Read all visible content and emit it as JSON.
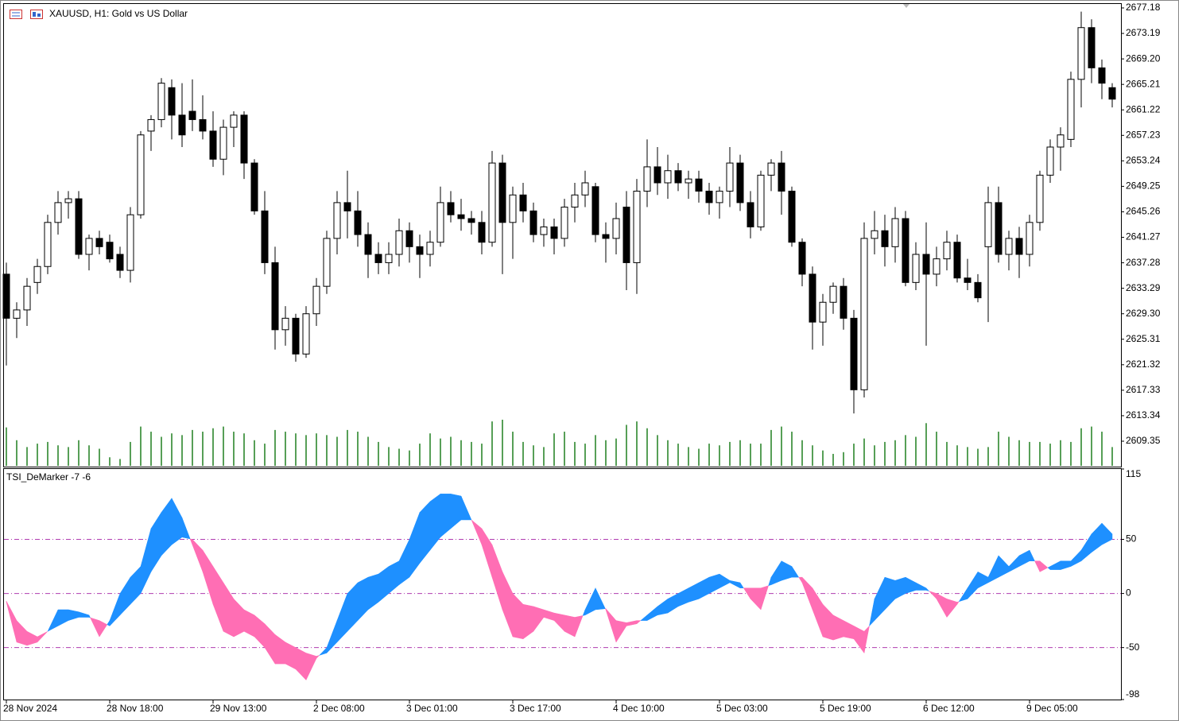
{
  "chart_data": [
    {
      "type": "candlestick",
      "title": "XAUUSD, H1:  Gold vs US Dollar",
      "categories": [
        "28 Nov 2024",
        null,
        null,
        null,
        null,
        null,
        null,
        null,
        null,
        null,
        "28 Nov 18:00",
        null,
        null,
        null,
        null,
        null,
        null,
        null,
        null,
        null,
        "29 Nov 13:00",
        null,
        null,
        null,
        null,
        null,
        null,
        null,
        null,
        null,
        "2 Dec 08:00",
        null,
        null,
        null,
        null,
        null,
        null,
        null,
        null,
        "3 Dec 01:00",
        null,
        null,
        null,
        null,
        null,
        null,
        null,
        null,
        null,
        "3 Dec 17:00",
        null,
        null,
        null,
        null,
        null,
        null,
        null,
        null,
        null,
        "4 Dec 10:00",
        null,
        null,
        null,
        null,
        null,
        null,
        null,
        null,
        null,
        "5 Dec 03:00",
        null,
        null,
        null,
        null,
        null,
        null,
        null,
        null,
        null,
        "5 Dec 19:00",
        null,
        null,
        null,
        null,
        null,
        null,
        null,
        null,
        null,
        "6 Dec 12:00",
        null,
        null,
        null,
        null,
        null,
        null,
        null,
        null,
        null,
        "9 Dec 05:00",
        null,
        null,
        null,
        null,
        null,
        null,
        null,
        null
      ],
      "open": [
        2635.5,
        2628.6,
        2629.9,
        2634.2,
        2636.7,
        2643.6,
        2646.7,
        2647.3,
        2638.6,
        2641.1,
        2640.5,
        2638.6,
        2636.1,
        2644.8,
        2657.9,
        2659.7,
        2664.7,
        2660.4,
        2661.0,
        2659.7,
        2657.9,
        2653.5,
        2658.5,
        2660.4,
        2652.9,
        2645.4,
        2637.3,
        2626.8,
        2628.6,
        2623.0,
        2629.3,
        2633.6,
        2641.1,
        2646.7,
        2645.4,
        2641.7,
        2638.6,
        2637.3,
        2638.6,
        2642.3,
        2639.8,
        2638.6,
        2640.5,
        2646.7,
        2644.8,
        2644.2,
        2643.6,
        2640.5,
        2652.9,
        2643.6,
        2647.9,
        2645.4,
        2641.7,
        2642.9,
        2641.1,
        2646.0,
        2647.9,
        2649.2,
        2641.7,
        2641.1,
        2646.0,
        2637.3,
        2648.5,
        2652.3,
        2649.8,
        2651.7,
        2649.8,
        2650.4,
        2648.5,
        2646.7,
        2648.5,
        2652.9,
        2646.7,
        2642.9,
        2651.0,
        2652.9,
        2648.5,
        2640.5,
        2635.5,
        2628.0,
        2631.1,
        2633.6,
        2628.6,
        2617.4,
        2641.1,
        2642.3,
        2639.8,
        2644.2,
        2634.2,
        2638.6,
        2635.5,
        2637.9,
        2640.5,
        2634.9,
        2634.2,
        2639.8,
        2646.7,
        2638.6,
        2641.1,
        2638.6,
        2643.6,
        2651.0,
        2655.4,
        2656.6,
        2666.0,
        2674.1,
        2667.8,
        2664.7
      ],
      "high": [
        2637.3,
        2631.1,
        2634.9,
        2637.9,
        2644.8,
        2648.5,
        2648.5,
        2648.5,
        2641.7,
        2642.3,
        2641.7,
        2639.8,
        2646.0,
        2657.9,
        2660.4,
        2666.2,
        2666.0,
        2665.4,
        2666.0,
        2663.5,
        2661.0,
        2659.7,
        2661.0,
        2661.0,
        2653.5,
        2648.5,
        2639.8,
        2630.5,
        2629.3,
        2630.5,
        2634.9,
        2642.3,
        2648.5,
        2651.7,
        2648.5,
        2643.6,
        2640.5,
        2640.5,
        2644.2,
        2643.6,
        2641.7,
        2642.3,
        2649.2,
        2648.5,
        2647.3,
        2645.4,
        2645.4,
        2654.8,
        2654.2,
        2649.2,
        2649.8,
        2646.7,
        2644.2,
        2644.2,
        2647.3,
        2649.8,
        2651.7,
        2649.8,
        2643.6,
        2646.7,
        2648.5,
        2650.4,
        2656.6,
        2655.4,
        2654.2,
        2652.9,
        2651.7,
        2651.7,
        2649.8,
        2649.2,
        2655.4,
        2654.2,
        2648.5,
        2651.7,
        2653.5,
        2654.8,
        2649.2,
        2641.1,
        2636.7,
        2632.4,
        2634.2,
        2634.9,
        2629.9,
        2643.6,
        2645.4,
        2644.8,
        2646.0,
        2645.4,
        2640.5,
        2643.6,
        2639.8,
        2642.3,
        2641.7,
        2637.9,
        2635.5,
        2649.2,
        2649.2,
        2642.3,
        2642.9,
        2644.8,
        2651.7,
        2656.6,
        2658.5,
        2667.2,
        2676.6,
        2675.4,
        2669.1,
        2665.4
      ],
      "low": [
        2621.2,
        2625.5,
        2627.4,
        2632.4,
        2635.5,
        2641.7,
        2644.2,
        2637.9,
        2636.1,
        2638.6,
        2637.3,
        2634.9,
        2634.2,
        2644.2,
        2654.8,
        2658.5,
        2656.6,
        2655.4,
        2657.9,
        2656.6,
        2652.3,
        2651.0,
        2655.4,
        2650.4,
        2644.8,
        2635.5,
        2623.7,
        2624.3,
        2621.8,
        2622.4,
        2627.4,
        2632.4,
        2638.6,
        2641.1,
        2639.8,
        2634.9,
        2635.5,
        2635.5,
        2636.7,
        2637.3,
        2634.9,
        2636.7,
        2639.8,
        2643.6,
        2642.3,
        2641.7,
        2638.6,
        2639.8,
        2635.5,
        2637.9,
        2643.6,
        2640.5,
        2639.8,
        2638.6,
        2639.8,
        2643.6,
        2646.0,
        2640.5,
        2637.3,
        2638.6,
        2633.0,
        2632.4,
        2646.0,
        2647.9,
        2647.3,
        2648.5,
        2647.3,
        2646.7,
        2644.8,
        2644.2,
        2646.0,
        2645.4,
        2641.1,
        2642.3,
        2648.5,
        2644.8,
        2639.8,
        2633.6,
        2623.7,
        2624.3,
        2629.3,
        2626.8,
        2613.7,
        2616.2,
        2638.6,
        2636.7,
        2637.3,
        2633.6,
        2633.0,
        2624.3,
        2633.6,
        2636.1,
        2634.2,
        2633.0,
        2631.1,
        2628.0,
        2637.3,
        2636.1,
        2634.9,
        2636.7,
        2642.3,
        2649.8,
        2651.7,
        2655.4,
        2661.6,
        2665.4,
        2662.9,
        2661.6
      ],
      "close": [
        2628.6,
        2629.9,
        2633.6,
        2636.7,
        2643.6,
        2646.7,
        2647.3,
        2638.6,
        2641.1,
        2639.8,
        2637.9,
        2636.1,
        2644.8,
        2657.3,
        2659.7,
        2665.4,
        2660.4,
        2657.3,
        2659.7,
        2657.9,
        2653.5,
        2658.5,
        2660.4,
        2652.9,
        2645.4,
        2637.3,
        2626.8,
        2628.6,
        2623.0,
        2629.3,
        2633.6,
        2641.1,
        2646.7,
        2645.4,
        2641.7,
        2638.6,
        2637.3,
        2638.6,
        2642.3,
        2639.8,
        2638.6,
        2640.5,
        2646.7,
        2644.8,
        2644.2,
        2643.6,
        2640.5,
        2652.9,
        2643.6,
        2647.9,
        2645.4,
        2641.7,
        2642.9,
        2641.1,
        2646.0,
        2647.9,
        2649.8,
        2641.7,
        2641.1,
        2644.2,
        2637.3,
        2648.5,
        2652.3,
        2649.8,
        2651.7,
        2649.8,
        2650.4,
        2648.5,
        2646.7,
        2648.5,
        2652.9,
        2646.7,
        2642.9,
        2651.0,
        2652.9,
        2648.5,
        2640.5,
        2635.5,
        2628.0,
        2631.1,
        2633.6,
        2628.6,
        2617.4,
        2641.1,
        2642.3,
        2639.8,
        2644.2,
        2634.2,
        2638.6,
        2635.5,
        2637.9,
        2640.5,
        2634.9,
        2634.2,
        2631.8,
        2646.7,
        2638.6,
        2641.1,
        2638.6,
        2643.6,
        2651.0,
        2655.4,
        2657.3,
        2666.0,
        2674.1,
        2667.8,
        2665.4,
        2662.9
      ],
      "volume": [
        45,
        30,
        22,
        26,
        28,
        24,
        22,
        30,
        24,
        20,
        10,
        8,
        28,
        46,
        40,
        34,
        38,
        36,
        42,
        40,
        44,
        46,
        40,
        38,
        30,
        26,
        42,
        40,
        38,
        36,
        38,
        36,
        34,
        42,
        40,
        34,
        28,
        22,
        20,
        18,
        26,
        38,
        32,
        34,
        30,
        28,
        26,
        52,
        54,
        40,
        28,
        24,
        22,
        38,
        40,
        28,
        26,
        36,
        30,
        32,
        48,
        52,
        44,
        36,
        30,
        26,
        22,
        20,
        26,
        24,
        28,
        30,
        26,
        26,
        42,
        46,
        40,
        30,
        24,
        18,
        14,
        16,
        26,
        32,
        24,
        28,
        30,
        36,
        34,
        50,
        40,
        28,
        24,
        22,
        20,
        22,
        40,
        34,
        30,
        28,
        28,
        26,
        30,
        28,
        44,
        46,
        40,
        22
      ],
      "up_color": "#ffffff",
      "down_color": "#000000",
      "volume_color": "#1f7f1f",
      "ylim": [
        2605.37,
        2677.8
      ],
      "yticks": [
        2677.18,
        2673.19,
        {
          "value": 2669.2,
          "label": "2669.20"
        },
        2665.21,
        2661.22,
        2657.23,
        2653.24,
        2649.25,
        2645.26,
        2641.27,
        2637.28,
        2633.29,
        {
          "value": 2629.3,
          "label": "2629.30"
        },
        2625.31,
        2621.32,
        2617.33,
        2613.34,
        2609.35
      ]
    },
    {
      "type": "fill_between",
      "title": "TSI_DeMarker -7 -6",
      "series": [
        {
          "color": "#1e90ff",
          "values": [
            -8,
            -45,
            -48,
            -45,
            -35,
            -15,
            -15,
            -17,
            -20,
            -40,
            -25,
            0,
            15,
            25,
            60,
            75,
            88,
            70,
            45,
            20,
            -10,
            -35,
            -40,
            -35,
            -40,
            -50,
            -65,
            -65,
            -70,
            -80,
            -60,
            -50,
            -25,
            0,
            10,
            15,
            18,
            25,
            30,
            50,
            75,
            85,
            92,
            92,
            90,
            68,
            45,
            15,
            -15,
            -40,
            -42,
            -35,
            -22,
            -25,
            -35,
            -40,
            -15,
            5,
            -15,
            -45,
            -30,
            -28,
            -20,
            -12,
            -5,
            0,
            5,
            10,
            15,
            18,
            12,
            10,
            -5,
            -15,
            15,
            30,
            25,
            10,
            -15,
            -40,
            -43,
            -40,
            -42,
            -55,
            -5,
            15,
            12,
            15,
            10,
            5,
            -5,
            -22,
            -10,
            5,
            20,
            15,
            35,
            25,
            35,
            40,
            20,
            25,
            30,
            30,
            40,
            55,
            65,
            55
          ]
        },
        {
          "color": "#ff6eb4",
          "values": [
            -7,
            -25,
            -35,
            -40,
            -35,
            -30,
            -25,
            -22,
            -22,
            -25,
            -30,
            -20,
            -10,
            0,
            20,
            35,
            45,
            52,
            50,
            40,
            25,
            10,
            -5,
            -15,
            -20,
            -28,
            -38,
            -45,
            -50,
            -55,
            -58,
            -55,
            -45,
            -35,
            -25,
            -15,
            -8,
            0,
            8,
            15,
            28,
            40,
            52,
            60,
            68,
            68,
            60,
            45,
            20,
            0,
            -10,
            -12,
            -15,
            -18,
            -20,
            -22,
            -20,
            -15,
            -14,
            -25,
            -27,
            -25,
            -25,
            -20,
            -18,
            -12,
            -8,
            -5,
            0,
            5,
            10,
            5,
            5,
            5,
            8,
            12,
            15,
            15,
            5,
            -10,
            -20,
            -25,
            -30,
            -35,
            -25,
            -15,
            -5,
            0,
            3,
            3,
            0,
            -5,
            -8,
            -5,
            5,
            10,
            15,
            20,
            25,
            30,
            30,
            22,
            22,
            25,
            30,
            38,
            45,
            50
          ]
        }
      ],
      "levels": [
        50,
        0,
        -50
      ],
      "level_color": "#b03cb0",
      "ylim": [
        -98,
        115
      ],
      "yticks": [
        115,
        50,
        0,
        -50,
        -98
      ]
    }
  ]
}
